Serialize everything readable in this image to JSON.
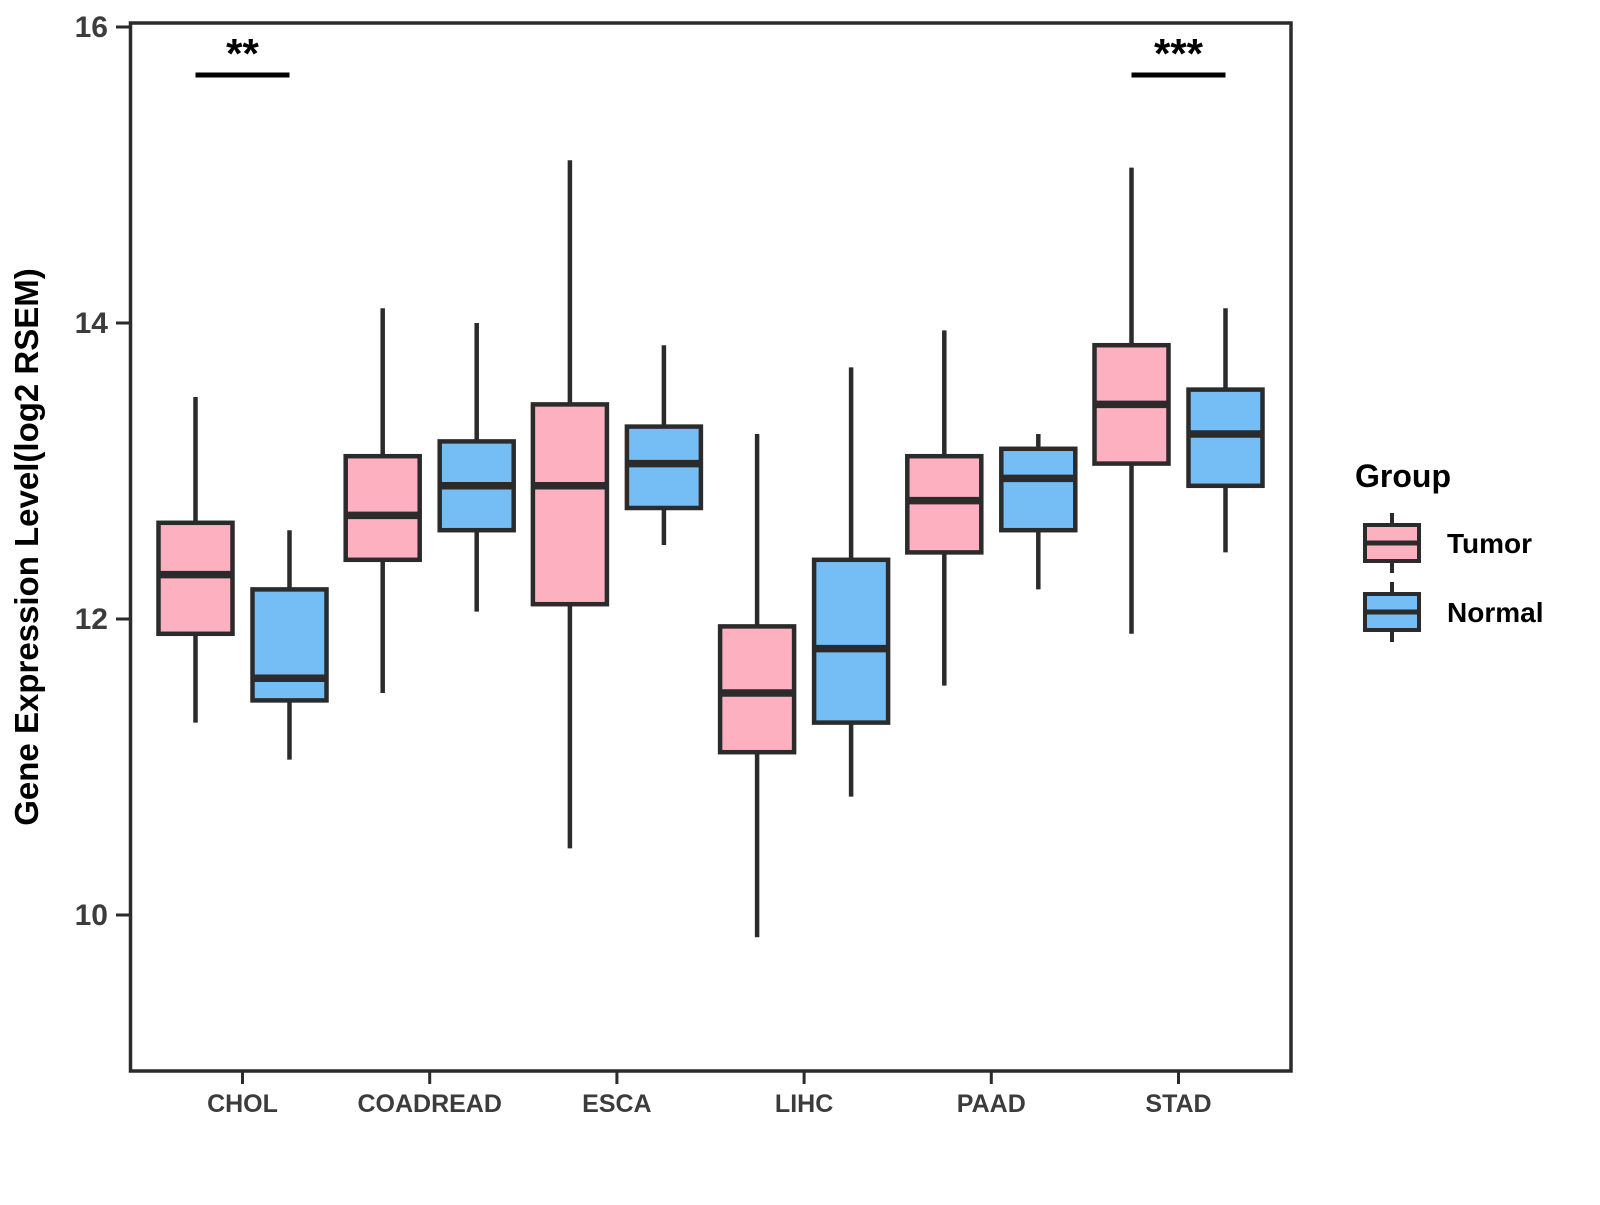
{
  "chart_data": {
    "type": "boxplot",
    "ylabel": "Gene Expression Level(log2 RSEM)",
    "xlabel": "",
    "categories": [
      "CHOL",
      "COADREAD",
      "ESCA",
      "LIHC",
      "PAAD",
      "STAD"
    ],
    "y_ticks": [
      10,
      12,
      14,
      16
    ],
    "ylim": [
      8.95,
      16.05
    ],
    "grid": "off",
    "legend_position": "right",
    "colors": {
      "tumor_fill": "#FCB0C0",
      "normal_fill": "#74BEF5",
      "box_stroke": "#2B2B2B",
      "axis_text": "#3c3c3c",
      "background": "#ffffff"
    },
    "legend": {
      "title": "Group",
      "entries": [
        {
          "label": "Tumor",
          "color": "#FCB0C0"
        },
        {
          "label": "Normal",
          "color": "#74BEF5"
        }
      ]
    },
    "series": [
      {
        "name": "Tumor",
        "color": "#FCB0C0",
        "boxes": [
          {
            "category": "CHOL",
            "whisker_low": 11.3,
            "q1": 11.9,
            "median": 12.3,
            "q3": 12.65,
            "whisker_high": 13.5
          },
          {
            "category": "COADREAD",
            "whisker_low": 11.5,
            "q1": 12.4,
            "median": 12.7,
            "q3": 13.1,
            "whisker_high": 14.1
          },
          {
            "category": "ESCA",
            "whisker_low": 10.45,
            "q1": 12.1,
            "median": 12.9,
            "q3": 13.45,
            "whisker_high": 15.1
          },
          {
            "category": "LIHC",
            "whisker_low": 9.85,
            "q1": 11.1,
            "median": 11.5,
            "q3": 11.95,
            "whisker_high": 13.25
          },
          {
            "category": "PAAD",
            "whisker_low": 11.55,
            "q1": 12.45,
            "median": 12.8,
            "q3": 13.1,
            "whisker_high": 13.95
          },
          {
            "category": "STAD",
            "whisker_low": 11.9,
            "q1": 13.05,
            "median": 13.45,
            "q3": 13.85,
            "whisker_high": 15.05
          }
        ]
      },
      {
        "name": "Normal",
        "color": "#74BEF5",
        "boxes": [
          {
            "category": "CHOL",
            "whisker_low": 11.05,
            "q1": 11.45,
            "median": 11.6,
            "q3": 12.2,
            "whisker_high": 12.6
          },
          {
            "category": "COADREAD",
            "whisker_low": 12.05,
            "q1": 12.6,
            "median": 12.9,
            "q3": 13.2,
            "whisker_high": 14.0
          },
          {
            "category": "ESCA",
            "whisker_low": 12.5,
            "q1": 12.75,
            "median": 13.05,
            "q3": 13.3,
            "whisker_high": 13.85
          },
          {
            "category": "LIHC",
            "whisker_low": 10.8,
            "q1": 11.3,
            "median": 11.8,
            "q3": 12.4,
            "whisker_high": 13.7
          },
          {
            "category": "PAAD",
            "whisker_low": 12.2,
            "q1": 12.6,
            "median": 12.95,
            "q3": 13.15,
            "whisker_high": 13.25
          },
          {
            "category": "STAD",
            "whisker_low": 12.45,
            "q1": 12.9,
            "median": 13.25,
            "q3": 13.55,
            "whisker_high": 14.1
          }
        ]
      }
    ],
    "significance": [
      {
        "category": "CHOL",
        "label": "**"
      },
      {
        "category": "STAD",
        "label": "***"
      }
    ]
  }
}
